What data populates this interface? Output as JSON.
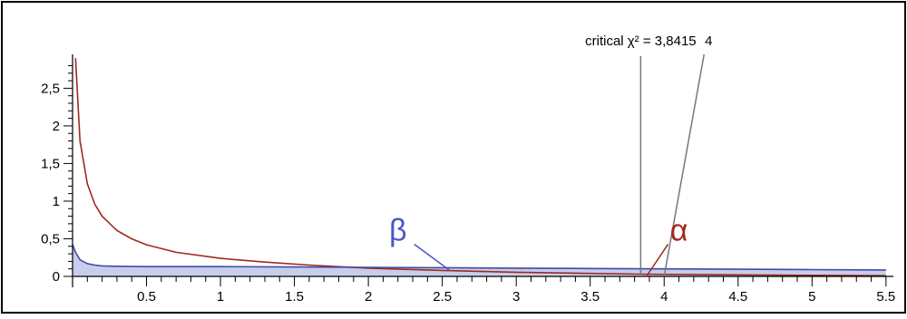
{
  "chart_data": {
    "type": "line",
    "xlim": [
      0,
      5.55
    ],
    "ylim": [
      0,
      2.95
    ],
    "x_ticks": [
      "0.5",
      "1",
      "1.5",
      "2",
      "2.5",
      "3",
      "3.5",
      "4",
      "4.5",
      "5",
      "5.5"
    ],
    "x_tick_values": [
      0.5,
      1,
      1.5,
      2,
      2.5,
      3,
      3.5,
      4,
      4.5,
      5,
      5.5
    ],
    "y_ticks": [
      "0",
      "0,5",
      "1",
      "1,5",
      "2",
      "2,5"
    ],
    "y_tick_values": [
      0,
      0.5,
      1,
      1.5,
      2,
      2.5
    ],
    "grid": false,
    "series": [
      {
        "color": "#a0291e",
        "x": [
          0.02,
          0.05,
          0.1,
          0.15,
          0.2,
          0.3,
          0.4,
          0.5,
          0.7,
          1.0,
          1.3,
          1.6,
          2.0,
          2.5,
          3.0,
          3.5,
          3.84,
          4.5,
          5.0,
          5.5
        ],
        "y": [
          2.9,
          1.8,
          1.23,
          0.96,
          0.8,
          0.61,
          0.5,
          0.42,
          0.32,
          0.24,
          0.19,
          0.15,
          0.11,
          0.08,
          0.055,
          0.04,
          0.03,
          0.02,
          0.015,
          0.01
        ]
      },
      {
        "color": "#3e4ba6",
        "fill": "#c7cdea",
        "x": [
          0.0,
          0.02,
          0.05,
          0.1,
          0.15,
          0.2,
          0.3,
          0.5,
          1.0,
          1.5,
          2.0,
          2.5,
          3.0,
          3.5,
          4.0,
          4.5,
          5.0,
          5.5
        ],
        "y": [
          0.42,
          0.32,
          0.22,
          0.17,
          0.15,
          0.14,
          0.135,
          0.13,
          0.13,
          0.125,
          0.12,
          0.115,
          0.11,
          0.105,
          0.1,
          0.095,
          0.09,
          0.085
        ]
      }
    ],
    "vline": {
      "x": 3.8415,
      "label": "critical χ² = 3,8415"
    },
    "annotations": [
      {
        "text": "4",
        "color": "#444444",
        "x": 4.0,
        "y": 0.0,
        "label_x": 4.27,
        "label_y": 2.95
      },
      {
        "text": "β",
        "color": "#4a56c4",
        "x": 2.55,
        "y": 0.08,
        "label_x": 2.2,
        "label_y": 0.5
      },
      {
        "text": "α",
        "color": "#a0291e",
        "x": 3.88,
        "y": 0.0,
        "label_x": 4.1,
        "label_y": 0.5
      }
    ]
  }
}
